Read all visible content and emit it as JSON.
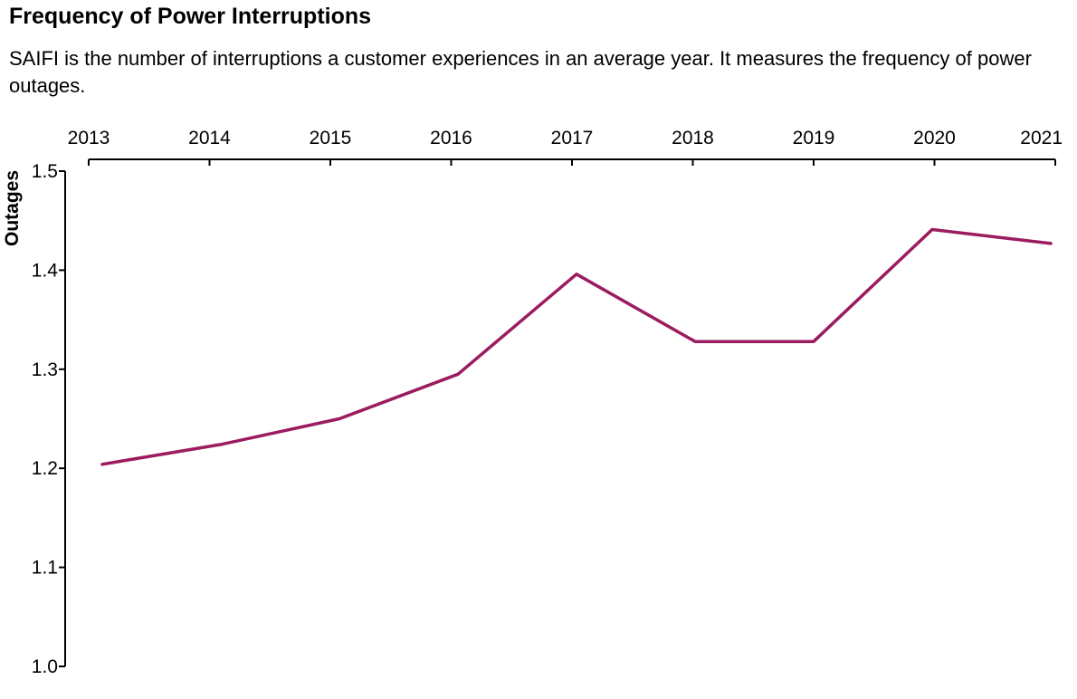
{
  "title": "Frequency of Power Interruptions",
  "subtitle": "SAIFI is the number of interruptions a customer experiences in an average year. It measures the frequency of power outages.",
  "colors": {
    "line": "#9b1c5f",
    "axis": "#000000"
  },
  "chart_data": {
    "type": "line",
    "title": "Frequency of Power Interruptions",
    "subtitle": "SAIFI is the number of interruptions a customer experiences in an average year. It measures the frequency of power outages.",
    "xlabel": "",
    "ylabel": "Outages",
    "x_axis_position": "top",
    "grid": false,
    "xlim": [
      2013,
      2021
    ],
    "ylim": [
      1.0,
      1.5
    ],
    "x_ticks": [
      "2013",
      "2014",
      "2015",
      "2016",
      "2017",
      "2018",
      "2019",
      "2020",
      "2021"
    ],
    "y_ticks": [
      "1.0",
      "1.1",
      "1.2",
      "1.3",
      "1.4",
      "1.5"
    ],
    "series": [
      {
        "x": [
          2013,
          2014,
          2015,
          2016,
          2017,
          2018,
          2019,
          2020,
          2021
        ],
        "values": [
          1.204,
          1.224,
          1.25,
          1.295,
          1.396,
          1.328,
          1.328,
          1.441,
          1.427
        ]
      }
    ]
  }
}
